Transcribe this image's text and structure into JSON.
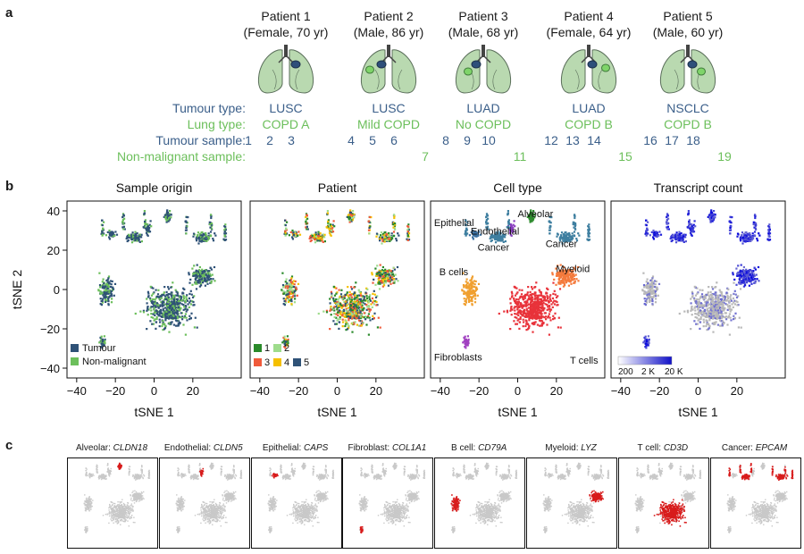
{
  "panel_labels": {
    "a": "a",
    "b": "b",
    "c": "c"
  },
  "panel_a": {
    "patients": [
      {
        "title": "Patient 1",
        "subtitle": "(Female, 70 yr)",
        "tumour_type": "LUSC",
        "lung_type": "COPD A",
        "tumour_samples": [
          "1",
          "2",
          "3"
        ],
        "nonmalignant": ""
      },
      {
        "title": "Patient 2",
        "subtitle": "(Male, 86 yr)",
        "tumour_type": "LUSC",
        "lung_type": "Mild COPD",
        "tumour_samples": [
          "4",
          "5",
          "6"
        ],
        "nonmalignant": "7"
      },
      {
        "title": "Patient 3",
        "subtitle": "(Male, 68 yr)",
        "tumour_type": "LUAD",
        "lung_type": "No COPD",
        "tumour_samples": [
          "8",
          "9",
          "10"
        ],
        "nonmalignant": "11"
      },
      {
        "title": "Patient 4",
        "subtitle": "(Female, 64 yr)",
        "tumour_type": "LUAD",
        "lung_type": "COPD B",
        "tumour_samples": [
          "12",
          "13",
          "14"
        ],
        "nonmalignant": "15"
      },
      {
        "title": "Patient 5",
        "subtitle": "(Male, 60 yr)",
        "tumour_type": "NSCLC",
        "lung_type": "COPD B",
        "tumour_samples": [
          "16",
          "17",
          "18"
        ],
        "nonmalignant": "19"
      }
    ],
    "row_labels": {
      "tumour_type": "Tumour type:",
      "lung_type": "Lung type:",
      "tumour_sample": "Tumour sample:",
      "nonmalignant_sample": "Non-malignant sample:"
    },
    "colors": {
      "blue": "#3b5f8a",
      "green": "#6cbf5b",
      "lung": "#b9d9b0"
    }
  },
  "chart_data": [
    {
      "type": "scatter",
      "title": "Sample origin",
      "xlabel": "tSNE 1",
      "ylabel": "tSNE 2",
      "xlim": [
        -45,
        45
      ],
      "ylim": [
        -45,
        45
      ],
      "xticks": [
        "−40",
        "−20",
        "0",
        "20"
      ],
      "yticks": [
        "40",
        "20",
        "0",
        "−20",
        "−40"
      ],
      "legend": [
        {
          "name": "Tumour",
          "color": "#2f5277"
        },
        {
          "name": "Non-malignant",
          "color": "#6cbf5b"
        }
      ]
    },
    {
      "type": "scatter",
      "title": "Patient",
      "xlabel": "tSNE 1",
      "xticks": [
        "−40",
        "−20",
        "0",
        "20"
      ],
      "legend": [
        {
          "name": "1",
          "color": "#2a8a2a"
        },
        {
          "name": "2",
          "color": "#9edc8c"
        },
        {
          "name": "3",
          "color": "#f05a3a"
        },
        {
          "name": "4",
          "color": "#f5c000"
        },
        {
          "name": "5",
          "color": "#2f5277"
        }
      ]
    },
    {
      "type": "scatter",
      "title": "Cell type",
      "xlabel": "tSNE 1",
      "xticks": [
        "−40",
        "−20",
        "0",
        "20"
      ],
      "annotations": [
        "Alveolar",
        "Epithelial",
        "Endothelial",
        "Cancer",
        "Cancer",
        "Myeloid",
        "B cells",
        "Fibroblasts",
        "T cells"
      ],
      "colors": {
        "T cells": "#e8323a",
        "B cells": "#f0a030",
        "Myeloid": "#f47a3c",
        "Cancer": "#3f7fa0",
        "Alveolar": "#2e8b2e",
        "Endothelial": "#8a3fc0",
        "Fibroblasts": "#a040c0",
        "Epithelial": "#3a6fa0"
      }
    },
    {
      "type": "scatter",
      "title": "Transcript count",
      "xlabel": "tSNE 1",
      "xticks": [
        "−40",
        "−20",
        "0",
        "20"
      ],
      "colorbar_labels": [
        "200",
        "2 K",
        "20 K"
      ],
      "colors": {
        "low": "#ffffff",
        "high": "#1010c8"
      }
    }
  ],
  "panel_c": {
    "genes": [
      {
        "cell": "Alveolar: ",
        "gene": "CLDN18"
      },
      {
        "cell": "Endothelial: ",
        "gene": "CLDN5"
      },
      {
        "cell": "Epithelial: ",
        "gene": "CAPS"
      },
      {
        "cell": "Fibroblast: ",
        "gene": "COL1A1"
      },
      {
        "cell": "B cell: ",
        "gene": "CD79A"
      },
      {
        "cell": "Myeloid: ",
        "gene": "LYZ"
      },
      {
        "cell": "T cell: ",
        "gene": "CD3D"
      },
      {
        "cell": "Cancer: ",
        "gene": "EPCAM"
      }
    ],
    "colors": {
      "base": "#c9c9c9",
      "expr": "#d81b1b"
    }
  }
}
